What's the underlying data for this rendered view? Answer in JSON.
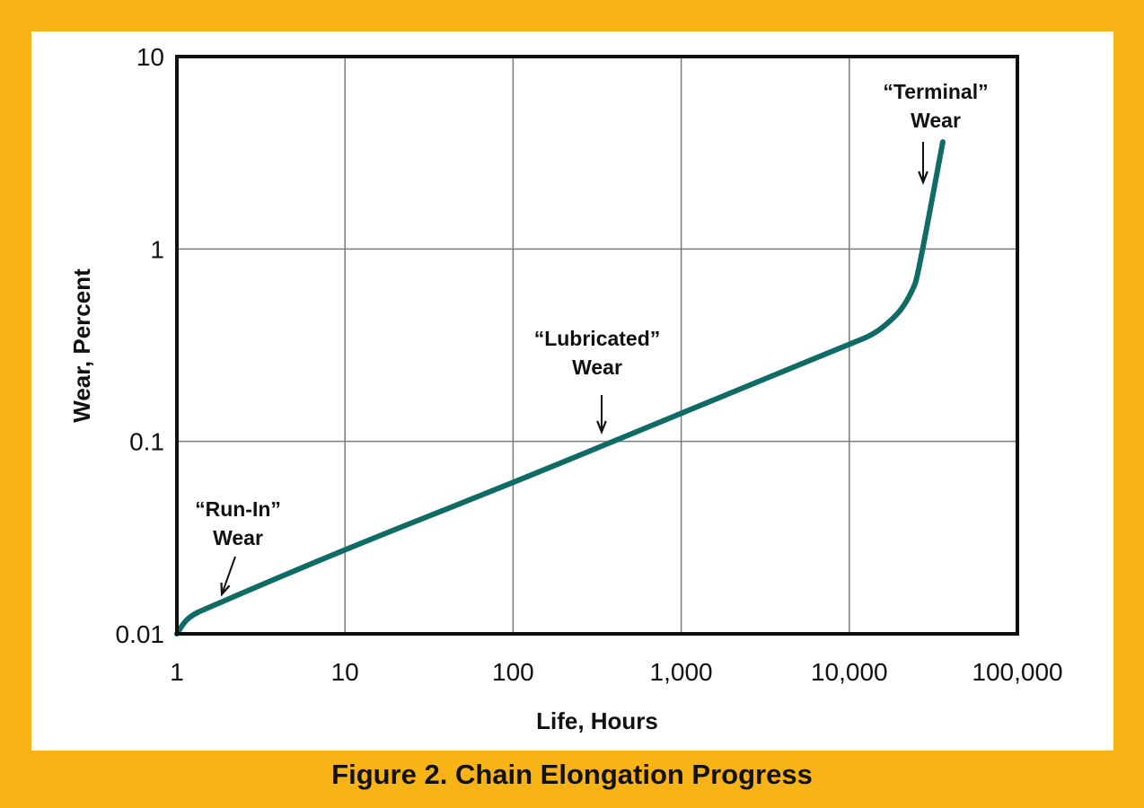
{
  "figure_title": "Figure 2. Chain Elongation Progress",
  "colors": {
    "background": "#F8B416",
    "panel": "#FFFFFF",
    "curve": "#0E6B66",
    "grid": "#7A7A7A",
    "axis": "#111111"
  },
  "chart_data": {
    "type": "line",
    "title": "",
    "xlabel": "Life, Hours",
    "ylabel": "Wear, Percent",
    "xscale": "log",
    "yscale": "log",
    "xlim": [
      1,
      100000
    ],
    "ylim": [
      0.01,
      10
    ],
    "grid": true,
    "x_ticks": [
      "1",
      "10",
      "100",
      "1,000",
      "10,000",
      "100,000"
    ],
    "y_ticks": [
      "0.01",
      "0.1",
      "1",
      "10"
    ],
    "series": [
      {
        "x": [
          1,
          1.1,
          1.25,
          1.45,
          10,
          100,
          1000,
          10000,
          14000,
          18000,
          21000,
          24000,
          25500,
          36000
        ],
        "y": [
          0.01,
          0.0115,
          0.0126,
          0.0134,
          0.0275,
          0.061,
          0.14,
          0.32,
          0.36,
          0.43,
          0.5,
          0.62,
          0.72,
          3.6
        ]
      }
    ],
    "annotations": [
      {
        "line1": "“Run-In”",
        "line2": "Wear",
        "x": 1.7,
        "y": 0.0145
      },
      {
        "line1": "“Lubricated”",
        "line2": "Wear",
        "x": 400,
        "y": 0.1
      },
      {
        "line1": "“Terminal”",
        "line2": "Wear",
        "x": 27000,
        "y": 2.2
      }
    ]
  }
}
